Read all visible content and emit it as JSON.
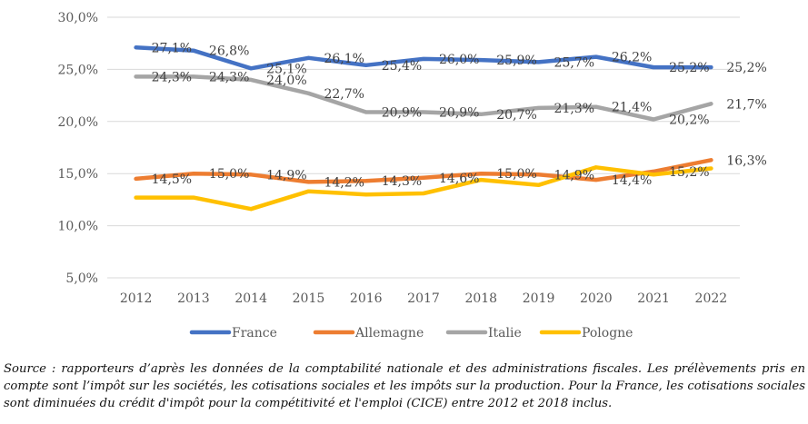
{
  "chart_data": {
    "type": "line",
    "title": "",
    "xlabel": "",
    "ylabel": "",
    "ylim": [
      5,
      30
    ],
    "y_ticks": [
      5,
      10,
      15,
      20,
      25,
      30
    ],
    "y_tick_labels": [
      "5,0%",
      "10,0%",
      "15,0%",
      "20,0%",
      "25,0%",
      "30,0%"
    ],
    "grid": true,
    "legend_position": "bottom",
    "categories": [
      "2012",
      "2013",
      "2014",
      "2015",
      "2016",
      "2017",
      "2018",
      "2019",
      "2020",
      "2021",
      "2022"
    ],
    "series": [
      {
        "name": "France",
        "color": "#4472C4",
        "values": [
          27.1,
          26.8,
          25.1,
          26.1,
          25.4,
          26.0,
          25.9,
          25.7,
          26.2,
          25.2,
          25.2
        ],
        "labels": [
          "27,1%",
          "26,8%",
          "25,1%",
          "26,1%",
          "25,4%",
          "26,0%",
          "25,9%",
          "25,7%",
          "26,2%",
          "25,2%",
          "25,2%"
        ]
      },
      {
        "name": "Allemagne",
        "color": "#ED7D31",
        "values": [
          14.5,
          15.0,
          14.9,
          14.2,
          14.3,
          14.6,
          15.0,
          14.9,
          14.4,
          15.2,
          16.3
        ],
        "labels": [
          "14,5%",
          "15,0%",
          "14,9%",
          "14,2%",
          "14,3%",
          "14,6%",
          "15,0%",
          "14,9%",
          "14,4%",
          "15,2%",
          "16,3%"
        ]
      },
      {
        "name": "Italie",
        "color": "#A5A5A5",
        "values": [
          24.3,
          24.3,
          24.0,
          22.7,
          20.9,
          20.9,
          20.7,
          21.3,
          21.4,
          20.2,
          21.7
        ],
        "labels": [
          "24,3%",
          "24,3%",
          "24,0%",
          "22,7%",
          "20,9%",
          "20,9%",
          "20,7%",
          "21,3%",
          "21,4%",
          "20,2%",
          "21,7%"
        ]
      },
      {
        "name": "Pologne",
        "color": "#FFC000",
        "values": [
          12.7,
          12.7,
          11.6,
          13.3,
          13.0,
          13.1,
          14.4,
          13.9,
          15.6,
          14.9,
          15.5
        ],
        "labels": []
      }
    ]
  },
  "caption": "Source : rapporteurs d’après les données de la comptabilité nationale et des administrations fiscales. Les prélèvements pris en compte sont l’impôt sur les sociétés, les cotisations sociales et les impôts sur la production. Pour la France, les cotisations sociales sont diminuées du crédit d'impôt pour la compétitivité et l'emploi (CICE) entre 2012 et 2018 inclus."
}
